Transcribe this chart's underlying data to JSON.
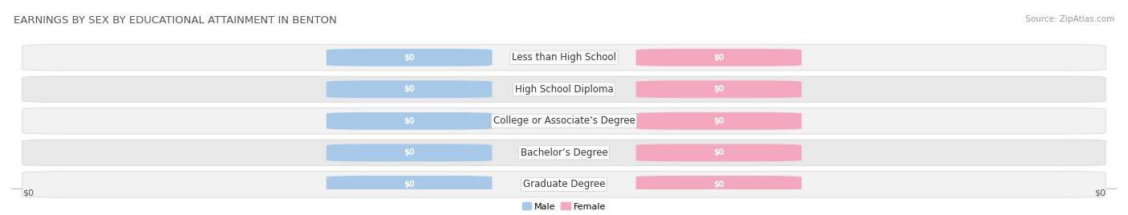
{
  "title": "EARNINGS BY SEX BY EDUCATIONAL ATTAINMENT IN BENTON",
  "source": "Source: ZipAtlas.com",
  "categories": [
    "Less than High School",
    "High School Diploma",
    "College or Associate’s Degree",
    "Bachelor’s Degree",
    "Graduate Degree"
  ],
  "male_values": [
    0,
    0,
    0,
    0,
    0
  ],
  "female_values": [
    0,
    0,
    0,
    0,
    0
  ],
  "male_color": "#a8c8e8",
  "female_color": "#f4a8c0",
  "row_bg_even": "#f2f2f2",
  "row_bg_odd": "#e8e8e8",
  "x_label_left": "$0",
  "x_label_right": "$0",
  "legend_male": "Male",
  "legend_female": "Female",
  "title_fontsize": 9.5,
  "source_fontsize": 7.5,
  "axis_label_fontsize": 8,
  "bar_value_fontsize": 7,
  "category_fontsize": 8.5
}
